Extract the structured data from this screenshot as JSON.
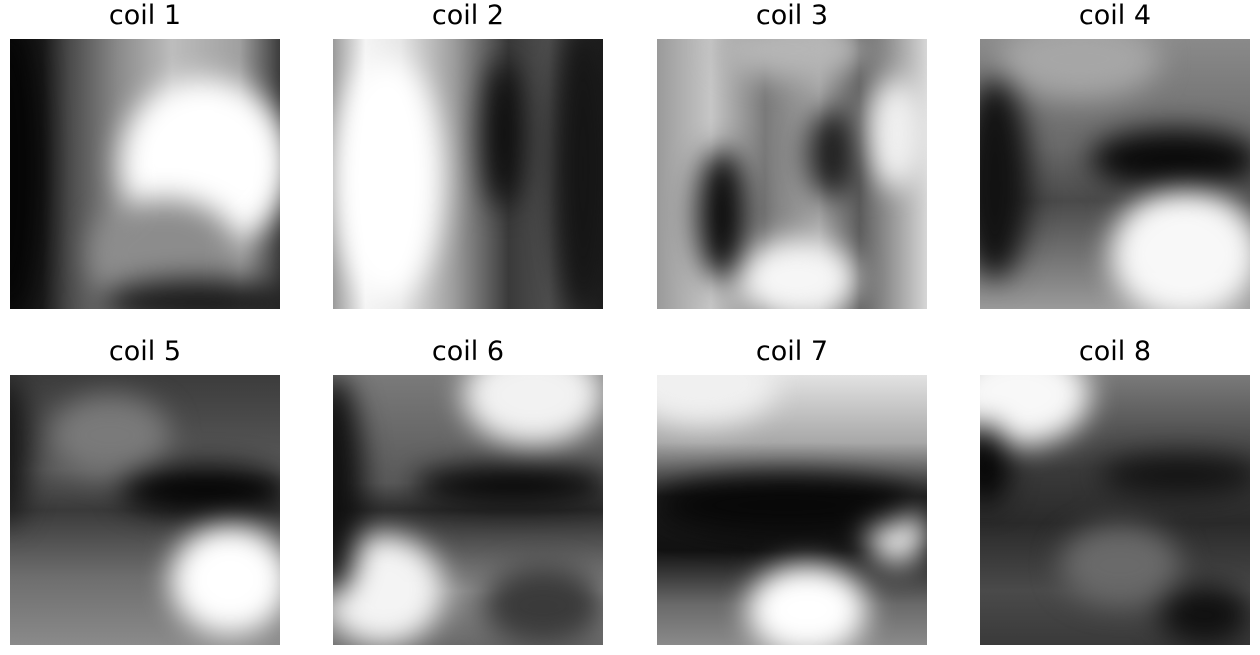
{
  "panels": [
    {
      "title": "coil 1"
    },
    {
      "title": "coil 2"
    },
    {
      "title": "coil 3"
    },
    {
      "title": "coil 4"
    },
    {
      "title": "coil 5"
    },
    {
      "title": "coil 6"
    },
    {
      "title": "coil 7"
    },
    {
      "title": "coil 8"
    }
  ],
  "colormap": "gray"
}
